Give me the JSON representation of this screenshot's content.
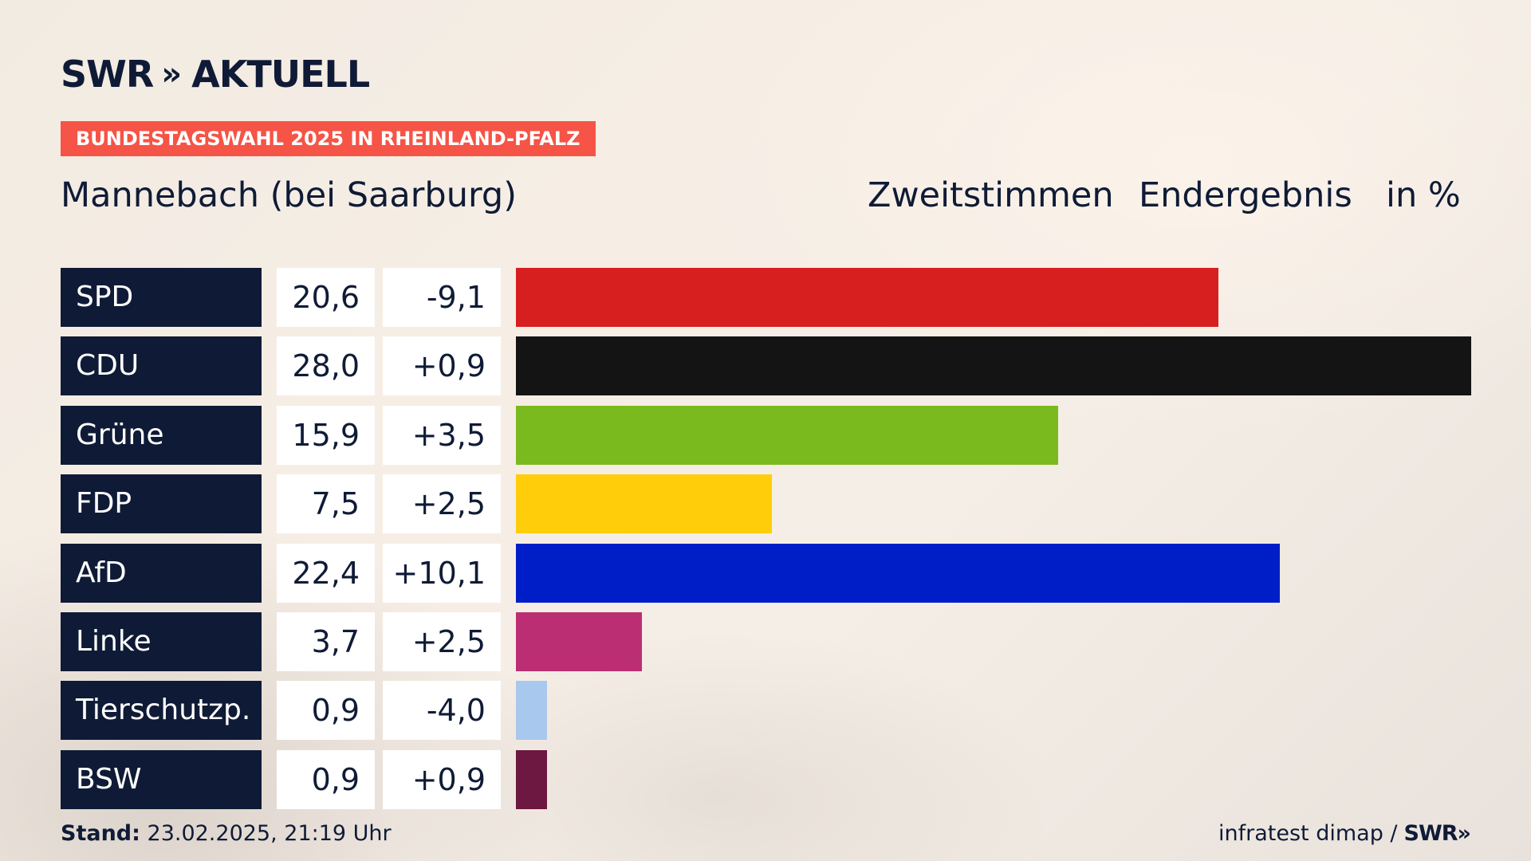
{
  "brand": {
    "logo_text": "SWR",
    "logo_chevrons": "»",
    "logo_suffix": "AKTUELL"
  },
  "topic": "BUNDESTAGSWAHL 2025 IN RHEINLAND-PFALZ",
  "place": "Mannebach (bei Saarburg)",
  "header": {
    "vote_type": "Zweitstimmen",
    "result_type": "Endergebnis",
    "unit": "in %"
  },
  "chart_data": {
    "type": "bar",
    "orientation": "horizontal",
    "title": "Mannebach (bei Saarburg)",
    "unit": "in %",
    "categories": [
      "SPD",
      "CDU",
      "Grüne",
      "FDP",
      "AfD",
      "Linke",
      "Tierschutzp.",
      "BSW"
    ],
    "values": [
      20.6,
      28.0,
      15.9,
      7.5,
      22.4,
      3.7,
      0.9,
      0.9
    ],
    "value_labels": [
      "20,6",
      "28,0",
      "15,9",
      "7,5",
      "22,4",
      "3,7",
      "0,9",
      "0,9"
    ],
    "diff_labels": [
      "-9,1",
      "+0,9",
      "+3,5",
      "+2,5",
      "+10,1",
      "+2,5",
      "-4,0",
      "+0,9"
    ],
    "colors": [
      "#d81f1f",
      "#141414",
      "#7aba1e",
      "#ffcd09",
      "#001ec8",
      "#bb2e74",
      "#a9c8ee",
      "#6c1840"
    ],
    "xlim": [
      0,
      28.0
    ],
    "grid": false
  },
  "footer": {
    "stand_label": "Stand:",
    "stand_value": "23.02.2025, 21:19 Uhr",
    "source": "infratest dimap /",
    "source_logo": "SWR»"
  }
}
